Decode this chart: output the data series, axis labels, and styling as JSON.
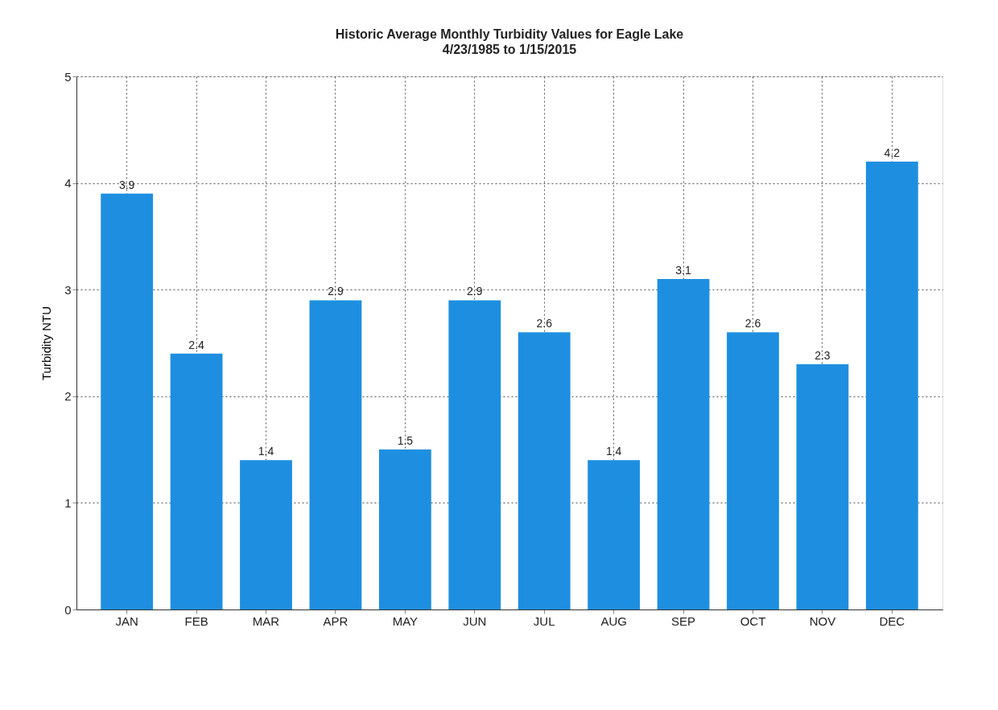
{
  "chart_data": {
    "type": "bar",
    "title": "Historic Average Monthly Turbidity Values for Eagle Lake",
    "subtitle": "4/23/1985 to 1/15/2015",
    "ylabel": "Turbidity NTU",
    "categories": [
      "JAN",
      "FEB",
      "MAR",
      "APR",
      "MAY",
      "JUN",
      "JUL",
      "AUG",
      "SEP",
      "OCT",
      "NOV",
      "DEC"
    ],
    "values": [
      3.9,
      2.4,
      1.4,
      2.9,
      1.5,
      2.9,
      2.6,
      1.4,
      3.1,
      2.6,
      2.3,
      4.2
    ],
    "color": "#1e8fe0",
    "ylim": [
      0,
      5
    ],
    "yticks": [
      0,
      1,
      2,
      3,
      4,
      5
    ],
    "grid": true,
    "data_labels": true
  }
}
